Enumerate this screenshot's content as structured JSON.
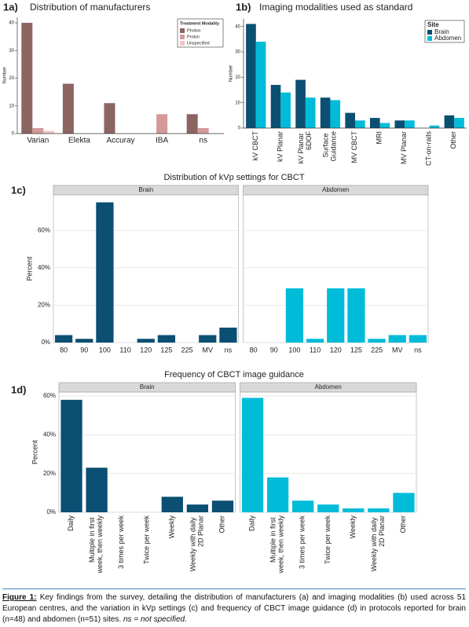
{
  "chart_data": [
    {
      "type": "bar",
      "label": "1a)",
      "title": "Distribution of manufacturers",
      "y_label": "Number",
      "categories": [
        "Varian",
        "Elekta",
        "Accuray",
        "IBA",
        "ns"
      ],
      "series": [
        {
          "name": "Photon",
          "color": "#8c6563",
          "values": [
            40,
            18,
            11,
            0,
            7
          ]
        },
        {
          "name": "Proton",
          "color": "#d49a9a",
          "values": [
            2,
            0,
            0,
            7,
            2
          ]
        },
        {
          "name": "Unspecified",
          "color": "#f3c6cb",
          "values": [
            1,
            0,
            0,
            0,
            0
          ]
        }
      ],
      "legend_title": "Treatment Modality",
      "legend": "top-right",
      "ylim": [
        0,
        42
      ],
      "yticks": [
        0,
        10,
        20,
        30,
        40
      ],
      "grid": false,
      "facet": false
    },
    {
      "type": "bar",
      "label": "1b)",
      "title": "Imaging modalities used as standard",
      "y_label": "Number",
      "categories": [
        "kV CBCT",
        "kV Planar",
        "kV Planar 6DOF",
        "Surface Guidance",
        "MV CBCT",
        "MRI",
        "MV Planar",
        "CT-on-rails",
        "Other"
      ],
      "series": [
        {
          "name": "Brain",
          "color": "#0b4f72",
          "values": [
            41,
            17,
            19,
            12,
            6,
            4,
            3,
            0,
            5
          ]
        },
        {
          "name": "Abdomen",
          "color": "#00bcd9",
          "values": [
            34,
            14,
            12,
            11,
            3,
            2,
            3,
            1,
            4
          ]
        }
      ],
      "legend_title": "Site",
      "legend": "top-right",
      "ylim": [
        0,
        43
      ],
      "yticks": [
        0,
        10,
        20,
        30,
        40
      ],
      "grid": false,
      "facet": false
    },
    {
      "type": "bar",
      "label": "1c)",
      "title": "Distribution of kVp settings for CBCT",
      "y_label": "Percent",
      "categories": [
        "80",
        "90",
        "100",
        "110",
        "120",
        "125",
        "225",
        "MV",
        "ns"
      ],
      "series": [
        {
          "name": "Brain",
          "color": "#0b4f72",
          "values": [
            4,
            2,
            75,
            0,
            2,
            4,
            0,
            4,
            8
          ]
        },
        {
          "name": "Abdomen",
          "color": "#00bcd9",
          "values": [
            0,
            0,
            29,
            2,
            29,
            29,
            2,
            4,
            4
          ]
        }
      ],
      "ylim": [
        0,
        79
      ],
      "yticks": [
        {
          "value": 0,
          "label": "0%"
        },
        {
          "value": 20,
          "label": "20%"
        },
        {
          "value": 40,
          "label": "40%"
        },
        {
          "value": 60,
          "label": "60%"
        }
      ],
      "grid": true,
      "facet": true
    },
    {
      "type": "bar",
      "label": "1d)",
      "title": "Frequency of CBCT image guidance",
      "y_label": "Percent",
      "categories": [
        "Daily",
        "Multiple in first week, then weekly",
        "3 times per week",
        "Twice per week",
        "Weekly",
        "Weekly with daily 2D Planar",
        "Other"
      ],
      "series": [
        {
          "name": "Brain",
          "color": "#0b4f72",
          "values": [
            58,
            23,
            0,
            0,
            8,
            4,
            6
          ]
        },
        {
          "name": "Abdomen",
          "color": "#00bcd9",
          "values": [
            59,
            18,
            6,
            4,
            2,
            2,
            10
          ]
        }
      ],
      "ylim": [
        0,
        62
      ],
      "yticks": [
        {
          "value": 0,
          "label": "0%"
        },
        {
          "value": 20,
          "label": "20%"
        },
        {
          "value": 40,
          "label": "40%"
        },
        {
          "value": 60,
          "label": "60%"
        }
      ],
      "grid": true,
      "facet": true
    }
  ],
  "caption": {
    "label": "Figure 1:",
    "text": " Key findings from the survey, detailing the distribution of manufacturers (a) and imaging modalities (b) used across 51 European centres, and the variation in kVp settings (c) and frequency of CBCT image guidance (d) in protocols reported for brain (n=48) and abdomen (n=51) sites. ",
    "note": "ns = not specified."
  }
}
